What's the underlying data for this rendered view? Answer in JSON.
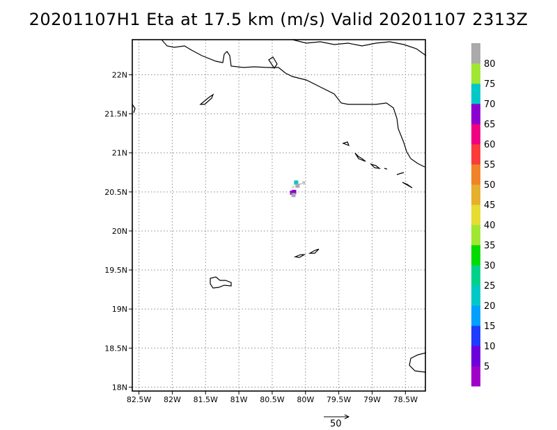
{
  "title": "20201107H1 Eta at 17.5 km (m/s) Valid 20201107 2313Z",
  "y_ticks": [
    "22N",
    "21.5N",
    "21N",
    "20.5N",
    "20N",
    "19.5N",
    "19N",
    "18.5N",
    "18N"
  ],
  "x_ticks": [
    "82.5W",
    "82W",
    "81.5W",
    "81W",
    "80.5W",
    "80W",
    "79.5W",
    "79W",
    "78.5W"
  ],
  "map_extent": {
    "lon_min": -82.6,
    "lon_max": -78.2,
    "lat_min": 17.95,
    "lat_max": 22.45,
    "grid": "dotted"
  },
  "colorbar": {
    "labels": [
      "5",
      "10",
      "15",
      "20",
      "25",
      "30",
      "35",
      "40",
      "45",
      "50",
      "55",
      "60",
      "65",
      "70",
      "75",
      "80"
    ],
    "colors": [
      "#a000c8",
      "#6e00dc",
      "#1e3cff",
      "#00a0ff",
      "#00c8c8",
      "#00d28c",
      "#00dc00",
      "#a0e632",
      "#e6dc32",
      "#e6af2d",
      "#f08228",
      "#fa3c3c",
      "#f00082",
      "#8c00d2",
      "#00c8c8",
      "#a0e632",
      "#aaaaaa"
    ]
  },
  "reference_vector": {
    "label": "50"
  },
  "storm_marks": [
    {
      "lon": -80.17,
      "lat": 20.5,
      "color": "#8c00d2"
    },
    {
      "lon": -80.2,
      "lat": 20.49,
      "color": "#8c00d2"
    },
    {
      "lon": -80.14,
      "lat": 20.62,
      "color": "#00c8c8"
    },
    {
      "lon": -80.12,
      "lat": 20.58,
      "color": "#aaaaaa"
    },
    {
      "lon": -80.18,
      "lat": 20.46,
      "color": "#aaaaaa"
    }
  ]
}
